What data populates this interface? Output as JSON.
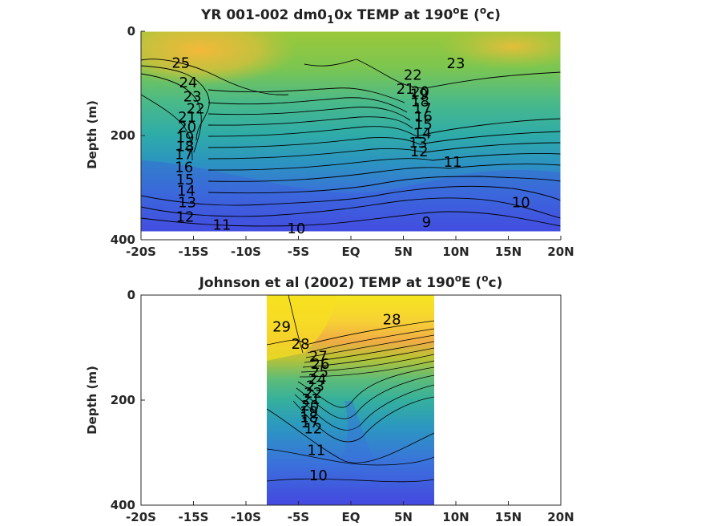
{
  "colors": {
    "warm_surface": "#f5b83a",
    "mid": "#3fb39a",
    "deep": "#4548e0",
    "contour_line": "#000000",
    "axis": "#262626"
  },
  "chart_data": [
    {
      "type": "contour",
      "title": {
        "pre": "YR 001-002 dm0",
        "sub": "1",
        "mid": "0x TEMP at 190",
        "sup1": "o",
        "post1": "E (",
        "sup2": "o",
        "post2": "c)"
      },
      "ylabel": "Depth (m)",
      "x_ticks": [
        "-20S",
        "-15S",
        "-10S",
        "-5S",
        "EQ",
        "5N",
        "10N",
        "15N",
        "20N"
      ],
      "x_tick_values": [
        -20,
        -15,
        -10,
        -5,
        0,
        5,
        10,
        15,
        20
      ],
      "y_ticks": [
        "0",
        "200",
        "400"
      ],
      "y_tick_values": [
        0,
        200,
        400
      ],
      "xlim": [
        -20,
        20
      ],
      "ylim": [
        0,
        400
      ],
      "data_extent": {
        "x": [
          -20,
          20
        ],
        "depth": [
          0,
          385
        ]
      },
      "contour_labels": [
        {
          "text": "25",
          "lat": -16.2,
          "depth": 62
        },
        {
          "text": "24",
          "lat": -15.5,
          "depth": 100
        },
        {
          "text": "23",
          "lat": -15.1,
          "depth": 127
        },
        {
          "text": "22",
          "lat": -14.8,
          "depth": 150
        },
        {
          "text": "21",
          "lat": -15.6,
          "depth": 166
        },
        {
          "text": "20",
          "lat": -15.6,
          "depth": 185
        },
        {
          "text": "19",
          "lat": -15.8,
          "depth": 205
        },
        {
          "text": "18",
          "lat": -15.8,
          "depth": 222
        },
        {
          "text": "17",
          "lat": -15.9,
          "depth": 238
        },
        {
          "text": "16",
          "lat": -15.9,
          "depth": 262
        },
        {
          "text": "15",
          "lat": -15.8,
          "depth": 286
        },
        {
          "text": "14",
          "lat": -15.7,
          "depth": 308
        },
        {
          "text": "13",
          "lat": -15.6,
          "depth": 330
        },
        {
          "text": "12",
          "lat": -15.8,
          "depth": 358
        },
        {
          "text": "11",
          "lat": -12.3,
          "depth": 373
        },
        {
          "text": "10",
          "lat": -5.2,
          "depth": 380
        },
        {
          "text": "9",
          "lat": 7.2,
          "depth": 368
        },
        {
          "text": "10",
          "lat": 16.2,
          "depth": 330
        },
        {
          "text": "11",
          "lat": 9.7,
          "depth": 252
        },
        {
          "text": "12",
          "lat": 6.5,
          "depth": 232
        },
        {
          "text": "13",
          "lat": 6.4,
          "depth": 215
        },
        {
          "text": "14",
          "lat": 6.8,
          "depth": 198
        },
        {
          "text": "15",
          "lat": 6.9,
          "depth": 180
        },
        {
          "text": "16",
          "lat": 6.9,
          "depth": 165
        },
        {
          "text": "17",
          "lat": 6.8,
          "depth": 150
        },
        {
          "text": "18",
          "lat": 6.6,
          "depth": 136
        },
        {
          "text": "19",
          "lat": 6.5,
          "depth": 122
        },
        {
          "text": "20",
          "lat": 6.6,
          "depth": 118
        },
        {
          "text": "21",
          "lat": 5.2,
          "depth": 112
        },
        {
          "text": "22",
          "lat": 5.9,
          "depth": 85
        },
        {
          "text": "23",
          "lat": 10.0,
          "depth": 63
        }
      ]
    },
    {
      "type": "contour",
      "title": {
        "pre": "Johnson et al (2002) TEMP at 190",
        "sup1": "o",
        "post1": "E (",
        "sup2": "o",
        "post2": "c)"
      },
      "ylabel": "Depth (m)",
      "x_ticks": [
        "-20S",
        "-15S",
        "-10S",
        "-5S",
        "EQ",
        "5N",
        "10N",
        "15N",
        "20N"
      ],
      "x_tick_values": [
        -20,
        -15,
        -10,
        -5,
        0,
        5,
        10,
        15,
        20
      ],
      "y_ticks": [
        "0",
        "200",
        "400"
      ],
      "y_tick_values": [
        0,
        200,
        400
      ],
      "xlim": [
        -20,
        20
      ],
      "ylim": [
        0,
        400
      ],
      "data_extent": {
        "x": [
          -8,
          8
        ],
        "depth": [
          0,
          400
        ]
      },
      "contour_labels": [
        {
          "text": "29",
          "lat": -6.6,
          "depth": 62
        },
        {
          "text": "28",
          "lat": -4.8,
          "depth": 95
        },
        {
          "text": "28",
          "lat": 3.9,
          "depth": 48
        },
        {
          "text": "27",
          "lat": -3.1,
          "depth": 118
        },
        {
          "text": "26",
          "lat": -2.9,
          "depth": 133
        },
        {
          "text": "25",
          "lat": -3.0,
          "depth": 148
        },
        {
          "text": "24",
          "lat": -3.2,
          "depth": 162
        },
        {
          "text": "23",
          "lat": -3.4,
          "depth": 175
        },
        {
          "text": "22",
          "lat": -3.6,
          "depth": 188
        },
        {
          "text": "21",
          "lat": -3.8,
          "depth": 200
        },
        {
          "text": "20",
          "lat": -3.9,
          "depth": 212
        },
        {
          "text": "19",
          "lat": -4.0,
          "depth": 224
        },
        {
          "text": "18",
          "lat": -4.0,
          "depth": 234
        },
        {
          "text": "17",
          "lat": -3.9,
          "depth": 244
        },
        {
          "text": "12",
          "lat": -3.6,
          "depth": 256
        },
        {
          "text": "11",
          "lat": -3.3,
          "depth": 297
        },
        {
          "text": "10",
          "lat": -3.1,
          "depth": 345
        }
      ]
    }
  ]
}
